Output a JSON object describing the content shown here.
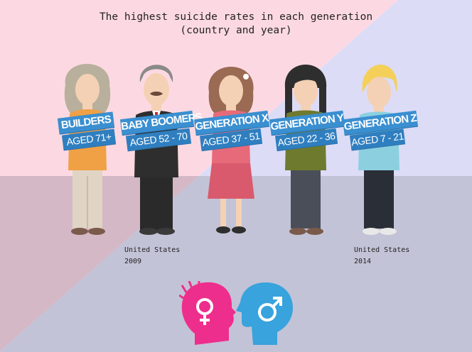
{
  "title": {
    "line1": "The highest suicide rates in each generation",
    "line2": "(country and year)"
  },
  "colors": {
    "bg_top_left": "#fcd9e2",
    "bg_top_right": "#dcdcf7",
    "bg_bottom": "#c3c3d7",
    "bg_bottom_left": "#d4b8c6",
    "banner": "#3a8fd0",
    "female_icon": "#ee2e8c",
    "male_icon": "#38a3dc"
  },
  "generations": [
    {
      "name": "BUILDERS",
      "age": "AGED 71+"
    },
    {
      "name": "BABY BOOMERS",
      "age": "AGED 52 - 70"
    },
    {
      "name": "GENERATION X",
      "age": "AGED 37 - 51"
    },
    {
      "name": "GENERATION Y",
      "age": "AGED 22 - 36"
    },
    {
      "name": "GENERATION Z",
      "age": "AGED 7 - 21"
    }
  ],
  "notes": [
    {
      "country": "United States",
      "year": "2009"
    },
    {
      "country": "United States",
      "year": "2014"
    }
  ],
  "icons": [
    "female-head-icon",
    "male-head-icon"
  ]
}
